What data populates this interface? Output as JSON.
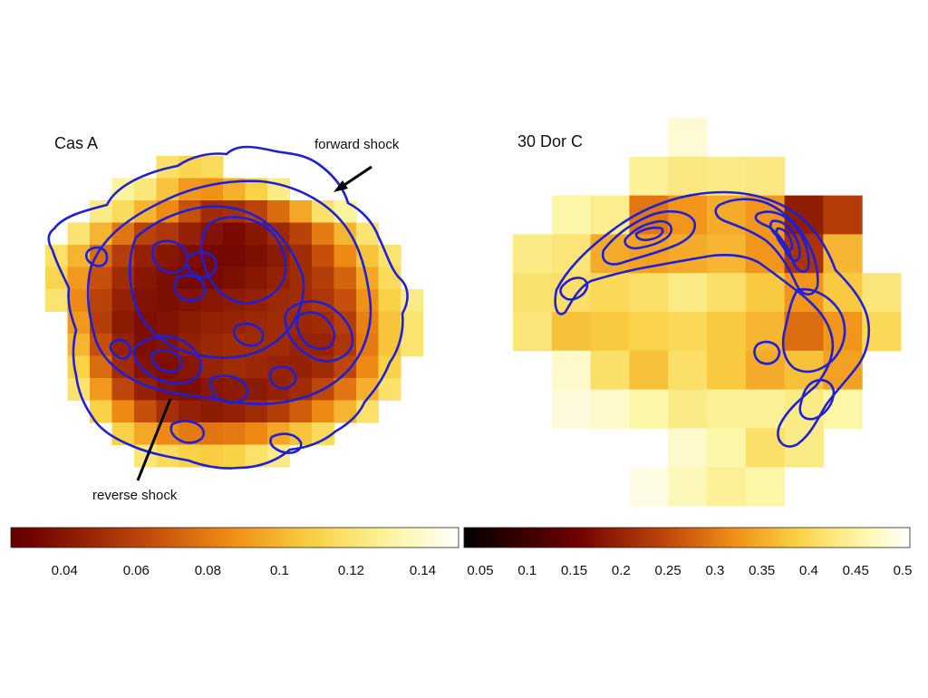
{
  "chart_data": [
    {
      "type": "heatmap",
      "panel_label": "Cas A",
      "annotations": [
        "forward shock",
        "reverse shock"
      ],
      "colorbar": {
        "colormap": "afmhot",
        "range": [
          0.025,
          0.15
        ],
        "ticks": [
          "0.04",
          "0.06",
          "0.08",
          "0.1",
          "0.12",
          "0.14"
        ]
      },
      "contour_color": "#1f1fd6",
      "grid": [
        [
          null,
          null,
          null,
          null,
          null,
          0.118,
          0.112,
          0.115,
          null,
          null,
          null,
          null,
          null,
          null,
          null,
          null,
          null
        ],
        [
          null,
          null,
          null,
          0.13,
          0.122,
          0.105,
          0.09,
          0.088,
          0.098,
          0.11,
          0.125,
          null,
          null,
          null,
          null,
          null,
          null
        ],
        [
          null,
          null,
          0.125,
          0.115,
          0.1,
          0.085,
          0.065,
          0.05,
          0.052,
          0.06,
          0.075,
          0.095,
          0.118,
          0.13,
          null,
          null,
          null
        ],
        [
          null,
          0.12,
          0.1,
          0.078,
          0.06,
          0.055,
          0.045,
          0.038,
          0.035,
          0.04,
          0.048,
          0.06,
          0.08,
          0.1,
          0.12,
          null,
          null
        ],
        [
          0.118,
          0.1,
          0.075,
          0.058,
          0.045,
          0.04,
          0.036,
          0.033,
          0.033,
          0.036,
          0.042,
          0.05,
          0.065,
          0.085,
          0.105,
          0.12,
          null
        ],
        [
          0.112,
          0.09,
          0.065,
          0.05,
          0.04,
          0.036,
          0.034,
          0.034,
          0.036,
          0.04,
          0.045,
          0.05,
          0.058,
          0.072,
          0.095,
          0.115,
          null
        ],
        [
          0.12,
          0.085,
          0.06,
          0.045,
          0.038,
          0.036,
          0.038,
          0.04,
          0.042,
          0.045,
          0.048,
          0.05,
          0.055,
          0.065,
          0.088,
          0.11,
          0.125
        ],
        [
          null,
          0.09,
          0.058,
          0.042,
          0.036,
          0.038,
          0.042,
          0.045,
          0.046,
          0.048,
          0.05,
          0.048,
          0.05,
          0.058,
          0.082,
          0.105,
          0.12
        ],
        [
          null,
          0.1,
          0.065,
          0.045,
          0.036,
          0.038,
          0.044,
          0.048,
          0.05,
          0.05,
          0.05,
          0.046,
          0.046,
          0.055,
          0.08,
          0.105,
          0.12
        ],
        [
          null,
          0.11,
          0.075,
          0.05,
          0.038,
          0.036,
          0.04,
          0.046,
          0.05,
          0.048,
          0.046,
          0.045,
          0.05,
          0.062,
          0.085,
          0.11,
          null
        ],
        [
          null,
          0.12,
          0.09,
          0.062,
          0.045,
          0.038,
          0.036,
          0.04,
          0.042,
          0.042,
          0.045,
          0.05,
          0.062,
          0.078,
          0.098,
          0.118,
          null
        ],
        [
          null,
          null,
          0.11,
          0.085,
          0.065,
          0.052,
          0.045,
          0.042,
          0.045,
          0.05,
          0.058,
          0.07,
          0.085,
          0.1,
          0.118,
          null,
          null
        ],
        [
          null,
          null,
          null,
          0.11,
          0.095,
          0.085,
          0.08,
          0.078,
          0.08,
          0.085,
          0.095,
          0.105,
          0.115,
          null,
          null,
          null,
          null
        ],
        [
          null,
          null,
          null,
          null,
          0.122,
          0.115,
          0.11,
          0.108,
          0.11,
          0.118,
          0.125,
          null,
          null,
          null,
          null,
          null,
          null
        ]
      ]
    },
    {
      "type": "heatmap",
      "panel_label": "30 Dor C",
      "colorbar": {
        "colormap": "afmhot",
        "range": [
          0.05,
          0.5
        ],
        "ticks": [
          "0.05",
          "0.1",
          "0.15",
          "0.2",
          "0.25",
          "0.3",
          "0.35",
          "0.4",
          "0.45",
          "0.5"
        ]
      },
      "contour_color": "#1f1fd6",
      "grid": [
        [
          null,
          null,
          null,
          null,
          0.475,
          null,
          null,
          null,
          null,
          null
        ],
        [
          null,
          null,
          null,
          0.44,
          0.425,
          0.43,
          0.425,
          null,
          null,
          null
        ],
        [
          null,
          0.45,
          0.435,
          0.3,
          0.33,
          0.35,
          0.33,
          0.2,
          0.24,
          null
        ],
        [
          0.43,
          0.42,
          0.35,
          0.34,
          0.35,
          0.36,
          0.33,
          0.23,
          0.36,
          null
        ],
        [
          0.415,
          0.41,
          0.4,
          0.41,
          0.43,
          0.41,
          0.38,
          0.33,
          0.38,
          0.42
        ],
        [
          0.42,
          0.37,
          0.38,
          0.39,
          0.4,
          0.38,
          0.36,
          0.29,
          0.33,
          0.4
        ],
        [
          null,
          0.47,
          0.41,
          0.37,
          0.41,
          0.38,
          0.35,
          0.37,
          0.34,
          null
        ],
        [
          null,
          0.48,
          0.47,
          0.45,
          0.43,
          0.44,
          0.44,
          0.43,
          0.45,
          null
        ],
        [
          null,
          null,
          null,
          null,
          0.47,
          0.45,
          0.41,
          0.43,
          null,
          null
        ],
        [
          null,
          null,
          null,
          0.485,
          0.46,
          0.44,
          0.45,
          null,
          null,
          null
        ]
      ]
    }
  ]
}
